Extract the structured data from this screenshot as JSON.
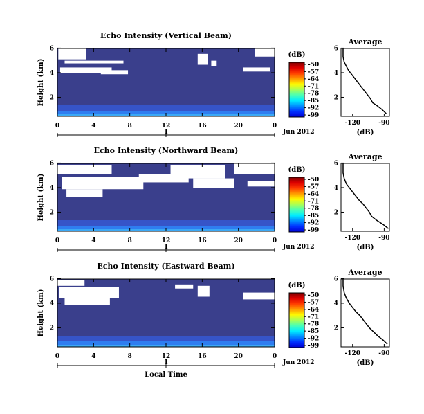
{
  "chart_data": [
    {
      "type": "heatmap",
      "title": "Echo Intensity (Vertical Beam)",
      "ylabel": "Height (km)",
      "xlim": [
        0,
        24
      ],
      "ylim": [
        0,
        5
      ],
      "x_ticks": [
        "0",
        "4",
        "8",
        "12",
        "16",
        "20",
        "0"
      ],
      "y_ticks": [
        "2",
        "4",
        "6"
      ],
      "day_labels": [
        "1",
        "Jun 2012"
      ],
      "colorbar": {
        "unit": "(dB)",
        "ticks": [
          "-50",
          "-57",
          "-64",
          "-71",
          "-78",
          "-85",
          "-92",
          "-99"
        ]
      },
      "average": {
        "title": "Average",
        "xlabel": "(dB)",
        "x_ticks": [
          "-120",
          "-90"
        ],
        "y_ticks": [
          "2",
          "4",
          "6"
        ],
        "profile": [
          {
            "h": 0.2,
            "db": -88
          },
          {
            "h": 0.5,
            "db": -92
          },
          {
            "h": 0.8,
            "db": -97
          },
          {
            "h": 1.0,
            "db": -101
          },
          {
            "h": 1.3,
            "db": -103
          },
          {
            "h": 1.6,
            "db": -106
          },
          {
            "h": 1.9,
            "db": -109
          },
          {
            "h": 2.2,
            "db": -112
          },
          {
            "h": 2.5,
            "db": -115
          },
          {
            "h": 2.8,
            "db": -118
          },
          {
            "h": 3.1,
            "db": -121
          },
          {
            "h": 3.4,
            "db": -124
          },
          {
            "h": 3.7,
            "db": -126
          },
          {
            "h": 4.0,
            "db": -128
          },
          {
            "h": 4.4,
            "db": -129
          },
          {
            "h": 5.0,
            "db": -129
          }
        ]
      },
      "no_data_regions": [
        {
          "t0": 0.1,
          "t1": 3.2,
          "h0": 4.2,
          "h1": 5.0
        },
        {
          "t0": 0.8,
          "t1": 7.3,
          "h0": 3.9,
          "h1": 4.1
        },
        {
          "t0": 0.3,
          "t1": 6.0,
          "h0": 3.2,
          "h1": 3.6
        },
        {
          "t0": 4.8,
          "t1": 7.8,
          "h0": 3.1,
          "h1": 3.4
        },
        {
          "t0": 15.5,
          "t1": 16.6,
          "h0": 3.8,
          "h1": 4.6
        },
        {
          "t0": 17.0,
          "t1": 17.6,
          "h0": 3.7,
          "h1": 4.1
        },
        {
          "t0": 20.5,
          "t1": 23.5,
          "h0": 3.3,
          "h1": 3.6
        },
        {
          "t0": 21.8,
          "t1": 24.0,
          "h0": 4.4,
          "h1": 5.0
        }
      ]
    },
    {
      "type": "heatmap",
      "title": "Echo Intensity (Northward Beam)",
      "ylabel": "Height (km)",
      "xlim": [
        0,
        24
      ],
      "ylim": [
        0,
        5
      ],
      "x_ticks": [
        "0",
        "4",
        "8",
        "12",
        "16",
        "20",
        "0"
      ],
      "y_ticks": [
        "2",
        "4",
        "6"
      ],
      "day_labels": [
        "1",
        "Jun 2012"
      ],
      "colorbar": {
        "unit": "(dB)",
        "ticks": [
          "-50",
          "-57",
          "-64",
          "-71",
          "-78",
          "-85",
          "-92",
          "-99"
        ]
      },
      "average": {
        "title": "Average",
        "xlabel": "(dB)",
        "x_ticks": [
          "-120",
          "-90"
        ],
        "y_ticks": [
          "2",
          "4",
          "6"
        ],
        "profile": [
          {
            "h": 0.2,
            "db": -86
          },
          {
            "h": 0.5,
            "db": -91
          },
          {
            "h": 0.8,
            "db": -97
          },
          {
            "h": 1.1,
            "db": -102
          },
          {
            "h": 1.4,
            "db": -104
          },
          {
            "h": 1.7,
            "db": -107
          },
          {
            "h": 2.0,
            "db": -110
          },
          {
            "h": 2.3,
            "db": -114
          },
          {
            "h": 2.6,
            "db": -117
          },
          {
            "h": 2.9,
            "db": -120
          },
          {
            "h": 3.2,
            "db": -123
          },
          {
            "h": 3.5,
            "db": -126
          },
          {
            "h": 3.9,
            "db": -128
          },
          {
            "h": 4.3,
            "db": -129
          },
          {
            "h": 5.0,
            "db": -129
          }
        ]
      },
      "no_data_regions": [
        {
          "t0": 0.0,
          "t1": 6.0,
          "h0": 4.2,
          "h1": 4.9
        },
        {
          "t0": 0.5,
          "t1": 9.5,
          "h0": 3.1,
          "h1": 4.0
        },
        {
          "t0": 1.0,
          "t1": 5.0,
          "h0": 2.5,
          "h1": 3.1
        },
        {
          "t0": 9.0,
          "t1": 14.5,
          "h0": 3.6,
          "h1": 4.2
        },
        {
          "t0": 12.5,
          "t1": 18.5,
          "h0": 3.9,
          "h1": 4.9
        },
        {
          "t0": 15.0,
          "t1": 19.5,
          "h0": 3.2,
          "h1": 3.9
        },
        {
          "t0": 19.5,
          "t1": 24.0,
          "h0": 4.2,
          "h1": 5.0
        },
        {
          "t0": 21.0,
          "t1": 24.0,
          "h0": 3.3,
          "h1": 3.7
        }
      ]
    },
    {
      "type": "heatmap",
      "title": "Echo Intensity (Eastward Beam)",
      "ylabel": "Height (km)",
      "xlim": [
        0,
        24
      ],
      "ylim": [
        0,
        5
      ],
      "x_ticks": [
        "0",
        "4",
        "8",
        "12",
        "16",
        "20",
        "0"
      ],
      "y_ticks": [
        "2",
        "4",
        "6"
      ],
      "xlabel": "Local Time",
      "day_labels": [
        "1",
        "Jun 2012"
      ],
      "colorbar": {
        "unit": "(dB)",
        "ticks": [
          "-50",
          "-57",
          "-64",
          "-71",
          "-78",
          "-85",
          "-92",
          "-99"
        ]
      },
      "average": {
        "title": "Average",
        "xlabel": "(dB)",
        "x_ticks": [
          "-120",
          "-90"
        ],
        "y_ticks": [
          "2",
          "4",
          "6"
        ],
        "profile": [
          {
            "h": 0.2,
            "db": -87
          },
          {
            "h": 0.5,
            "db": -91
          },
          {
            "h": 0.8,
            "db": -96
          },
          {
            "h": 1.1,
            "db": -100
          },
          {
            "h": 1.4,
            "db": -104
          },
          {
            "h": 1.7,
            "db": -107
          },
          {
            "h": 2.0,
            "db": -110
          },
          {
            "h": 2.3,
            "db": -113
          },
          {
            "h": 2.6,
            "db": -117
          },
          {
            "h": 2.9,
            "db": -120
          },
          {
            "h": 3.2,
            "db": -123
          },
          {
            "h": 3.6,
            "db": -126
          },
          {
            "h": 4.0,
            "db": -128
          },
          {
            "h": 4.5,
            "db": -129
          },
          {
            "h": 5.0,
            "db": -129
          }
        ]
      },
      "no_data_regions": [
        {
          "t0": 0.2,
          "t1": 6.8,
          "h0": 3.6,
          "h1": 4.4
        },
        {
          "t0": 0.8,
          "t1": 5.8,
          "h0": 3.1,
          "h1": 3.6
        },
        {
          "t0": 0.0,
          "t1": 3.0,
          "h0": 4.5,
          "h1": 4.9
        },
        {
          "t0": 15.5,
          "t1": 16.8,
          "h0": 3.7,
          "h1": 4.5
        },
        {
          "t0": 20.5,
          "t1": 24.0,
          "h0": 3.5,
          "h1": 4.0
        },
        {
          "t0": 13.0,
          "t1": 15.0,
          "h0": 4.3,
          "h1": 4.6
        }
      ]
    }
  ]
}
